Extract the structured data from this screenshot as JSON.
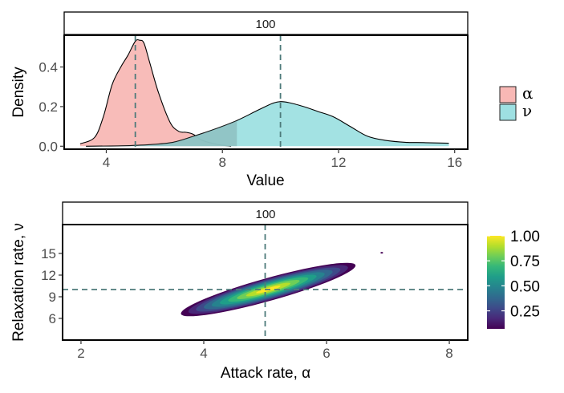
{
  "chart_data": [
    {
      "type": "area",
      "panel_title": "100",
      "xlabel": "Value",
      "ylabel": "Density",
      "xlim": [
        2.55,
        16.45
      ],
      "ylim": [
        -0.015,
        0.56
      ],
      "xticks": [
        4,
        8,
        12,
        16
      ],
      "xtick_labels": [
        "4",
        "8",
        "12",
        "16"
      ],
      "yticks": [
        0.0,
        0.2,
        0.4
      ],
      "ytick_labels": [
        "0.0",
        "0.2",
        "0.4"
      ],
      "reference_lines": [
        5,
        10
      ],
      "legend": {
        "position": "right",
        "entries": [
          {
            "label": "α",
            "color": "#f8b8b5"
          },
          {
            "label": "ν",
            "color": "#9ee0e2"
          }
        ]
      },
      "series": [
        {
          "name": "α",
          "color": "#f8b8b5",
          "x": [
            3.1,
            3.6,
            3.9,
            4.2,
            4.5,
            4.75,
            5.0,
            5.15,
            5.3,
            5.5,
            5.8,
            6.2,
            6.5,
            6.75,
            7.0,
            7.3,
            7.8,
            8.3
          ],
          "y": [
            0.012,
            0.045,
            0.15,
            0.31,
            0.4,
            0.46,
            0.53,
            0.535,
            0.52,
            0.42,
            0.27,
            0.12,
            0.075,
            0.07,
            0.06,
            0.03,
            0.01,
            0.0
          ]
        },
        {
          "name": "ν",
          "color": "#9ee0e2",
          "x": [
            3.3,
            4.5,
            5.5,
            6.3,
            7.0,
            7.8,
            8.5,
            9.2,
            9.7,
            10.0,
            10.3,
            10.8,
            11.3,
            11.8,
            12.4,
            13.0,
            13.6,
            14.3,
            15.0,
            15.8
          ],
          "y": [
            0.0,
            0.002,
            0.008,
            0.02,
            0.05,
            0.09,
            0.13,
            0.18,
            0.215,
            0.225,
            0.22,
            0.2,
            0.175,
            0.15,
            0.1,
            0.05,
            0.03,
            0.02,
            0.018,
            0.015
          ]
        }
      ]
    },
    {
      "type": "heatmap",
      "subtype": "density_contour",
      "panel_title": "100",
      "xlabel": "Attack rate, α",
      "ylabel": "Relaxation rate, ν",
      "xlim": [
        1.7,
        8.3
      ],
      "ylim": [
        3.0,
        19.0
      ],
      "xticks": [
        2,
        4,
        6,
        8
      ],
      "xtick_labels": [
        "2",
        "4",
        "6",
        "8"
      ],
      "yticks": [
        6,
        9,
        12,
        15
      ],
      "ytick_labels": [
        "6",
        "9",
        "12",
        "15"
      ],
      "reference_lines": {
        "x": 5,
        "y": 10
      },
      "density": {
        "center": [
          5.05,
          10.0
        ],
        "extent_x": [
          3.6,
          6.55
        ],
        "extent_y": [
          6.5,
          13.5
        ]
      },
      "stray_point": [
        6.9,
        15.1
      ],
      "colorbar": {
        "ticks": [
          0.25,
          0.5,
          0.75,
          1.0
        ],
        "tick_labels": [
          "0.25",
          "0.50",
          "0.75",
          "1.00"
        ],
        "range": [
          0.07,
          1.0
        ],
        "colors": [
          "#440154",
          "#482878",
          "#3e4989",
          "#31688e",
          "#26828e",
          "#1f9e89",
          "#35b779",
          "#6ece58",
          "#b5de2b",
          "#fde725"
        ]
      }
    }
  ]
}
